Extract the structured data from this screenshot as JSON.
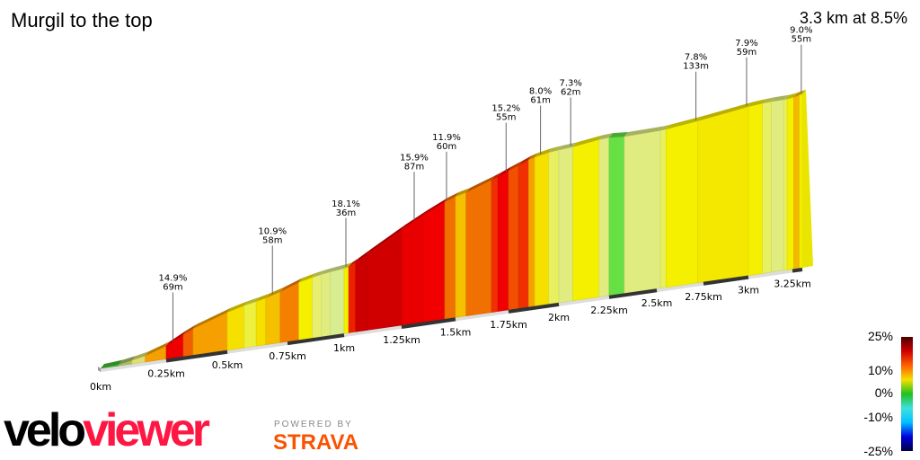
{
  "header": {
    "title": "Murgil to the top",
    "summary": "3.3 km at 8.5%"
  },
  "chart_data": {
    "type": "area",
    "xlabel": "",
    "ylabel": "",
    "x_ticks": [
      "0km",
      "0.25km",
      "0.5km",
      "0.75km",
      "1km",
      "1.25km",
      "1.5km",
      "1.75km",
      "2km",
      "2.25km",
      "2.5km",
      "2.75km",
      "3km",
      "3.25km"
    ],
    "x_tick_values": [
      0,
      0.25,
      0.5,
      0.75,
      1,
      1.25,
      1.5,
      1.75,
      2,
      2.25,
      2.5,
      2.75,
      3,
      3.25
    ],
    "total_km": 3.32,
    "segments": [
      {
        "from": 0,
        "to": 0.07,
        "gradient": 2,
        "color": "#44bb33"
      },
      {
        "from": 0.07,
        "to": 0.12,
        "gradient": 5,
        "color": "#a8c060"
      },
      {
        "from": 0.12,
        "to": 0.17,
        "gradient": 6,
        "color": "#e0e070"
      },
      {
        "from": 0.17,
        "to": 0.25,
        "gradient": 10,
        "color": "#f5a000"
      },
      {
        "from": 0.25,
        "to": 0.32,
        "gradient": 15,
        "color": "#ee0000"
      },
      {
        "from": 0.32,
        "to": 0.36,
        "gradient": 13,
        "color": "#f06000"
      },
      {
        "from": 0.36,
        "to": 0.5,
        "gradient": 10,
        "color": "#f5a000"
      },
      {
        "from": 0.5,
        "to": 0.57,
        "gradient": 8,
        "color": "#f5e000"
      },
      {
        "from": 0.57,
        "to": 0.62,
        "gradient": 6,
        "color": "#eef040"
      },
      {
        "from": 0.62,
        "to": 0.66,
        "gradient": 7,
        "color": "#f5e000"
      },
      {
        "from": 0.66,
        "to": 0.72,
        "gradient": 9,
        "color": "#f5c000"
      },
      {
        "from": 0.72,
        "to": 0.8,
        "gradient": 11,
        "color": "#f58000"
      },
      {
        "from": 0.8,
        "to": 0.86,
        "gradient": 7,
        "color": "#f5f000"
      },
      {
        "from": 0.86,
        "to": 0.9,
        "gradient": 6,
        "color": "#e8ee70"
      },
      {
        "from": 0.9,
        "to": 0.94,
        "gradient": 5,
        "color": "#e0ec80"
      },
      {
        "from": 0.94,
        "to": 1.0,
        "gradient": 4,
        "color": "#d8ec90"
      },
      {
        "from": 1.0,
        "to": 1.02,
        "gradient": 7,
        "color": "#f0f000"
      },
      {
        "from": 1.02,
        "to": 1.05,
        "gradient": 16,
        "color": "#ee2000"
      },
      {
        "from": 1.05,
        "to": 1.1,
        "gradient": 18,
        "color": "#cc0000"
      },
      {
        "from": 1.1,
        "to": 1.25,
        "gradient": 18,
        "color": "#d00000"
      },
      {
        "from": 1.25,
        "to": 1.35,
        "gradient": 16,
        "color": "#e80000"
      },
      {
        "from": 1.35,
        "to": 1.45,
        "gradient": 15,
        "color": "#f00000"
      },
      {
        "from": 1.45,
        "to": 1.5,
        "gradient": 12,
        "color": "#f07000"
      },
      {
        "from": 1.5,
        "to": 1.55,
        "gradient": 9,
        "color": "#f5c000"
      },
      {
        "from": 1.55,
        "to": 1.67,
        "gradient": 12,
        "color": "#f07000"
      },
      {
        "from": 1.67,
        "to": 1.7,
        "gradient": 13,
        "color": "#f03000"
      },
      {
        "from": 1.7,
        "to": 1.75,
        "gradient": 15,
        "color": "#f00000"
      },
      {
        "from": 1.75,
        "to": 1.8,
        "gradient": 13,
        "color": "#f05000"
      },
      {
        "from": 1.8,
        "to": 1.85,
        "gradient": 14,
        "color": "#f03000"
      },
      {
        "from": 1.85,
        "to": 1.88,
        "gradient": 11,
        "color": "#f5a000"
      },
      {
        "from": 1.88,
        "to": 1.95,
        "gradient": 8,
        "color": "#f5e000"
      },
      {
        "from": 1.95,
        "to": 2.0,
        "gradient": 6,
        "color": "#e8f060"
      },
      {
        "from": 2.0,
        "to": 2.07,
        "gradient": 5,
        "color": "#e0ec80"
      },
      {
        "from": 2.07,
        "to": 2.2,
        "gradient": 7,
        "color": "#f5f000"
      },
      {
        "from": 2.2,
        "to": 2.25,
        "gradient": 5,
        "color": "#e0ec80"
      },
      {
        "from": 2.25,
        "to": 2.33,
        "gradient": 1,
        "color": "#66e044"
      },
      {
        "from": 2.33,
        "to": 2.52,
        "gradient": 4,
        "color": "#e0ec80"
      },
      {
        "from": 2.52,
        "to": 2.55,
        "gradient": 6,
        "color": "#e8f060"
      },
      {
        "from": 2.55,
        "to": 2.72,
        "gradient": 7,
        "color": "#f5f000"
      },
      {
        "from": 2.72,
        "to": 3.0,
        "gradient": 8,
        "color": "#f5e800"
      },
      {
        "from": 3.0,
        "to": 3.08,
        "gradient": 7,
        "color": "#f5f000"
      },
      {
        "from": 3.08,
        "to": 3.13,
        "gradient": 6,
        "color": "#e8f060"
      },
      {
        "from": 3.13,
        "to": 3.2,
        "gradient": 5,
        "color": "#e0ec80"
      },
      {
        "from": 3.2,
        "to": 3.22,
        "gradient": 6,
        "color": "#e8f060"
      },
      {
        "from": 3.22,
        "to": 3.26,
        "gradient": 8,
        "color": "#f5f000"
      },
      {
        "from": 3.26,
        "to": 3.3,
        "gradient": 11,
        "color": "#f5b800"
      },
      {
        "from": 3.3,
        "to": 3.32,
        "gradient": 7,
        "color": "#f5f000"
      }
    ],
    "annotations": [
      {
        "km": 0.27,
        "grade": "14.9%",
        "length": "69m"
      },
      {
        "km": 0.68,
        "grade": "10.9%",
        "length": "58m"
      },
      {
        "km": 1.0,
        "grade": "18.1%",
        "length": "36m"
      },
      {
        "km": 1.3,
        "grade": "15.9%",
        "length": "87m"
      },
      {
        "km": 1.45,
        "grade": "11.9%",
        "length": "60m"
      },
      {
        "km": 1.73,
        "grade": "15.2%",
        "length": "55m"
      },
      {
        "km": 1.9,
        "grade": "8.0%",
        "length": "61m"
      },
      {
        "km": 2.05,
        "grade": "7.3%",
        "length": "62m"
      },
      {
        "km": 2.7,
        "grade": "7.8%",
        "length": "133m"
      },
      {
        "km": 2.98,
        "grade": "7.9%",
        "length": "59m"
      },
      {
        "km": 3.3,
        "grade": "9.0%",
        "length": "55m"
      }
    ],
    "legend": {
      "labels": [
        "25%",
        "10%",
        "0%",
        "-10%",
        "-25%"
      ],
      "colors": [
        "#4a0000",
        "#d00000",
        "#ff6000",
        "#f5e000",
        "#20c020",
        "#40e0e0",
        "#00c0ff",
        "#0000e0",
        "#000040"
      ]
    }
  },
  "branding": {
    "logo_part1": "velo",
    "logo_part2": "viewer",
    "powered_by": "POWERED BY",
    "strava": "STRAVA"
  }
}
